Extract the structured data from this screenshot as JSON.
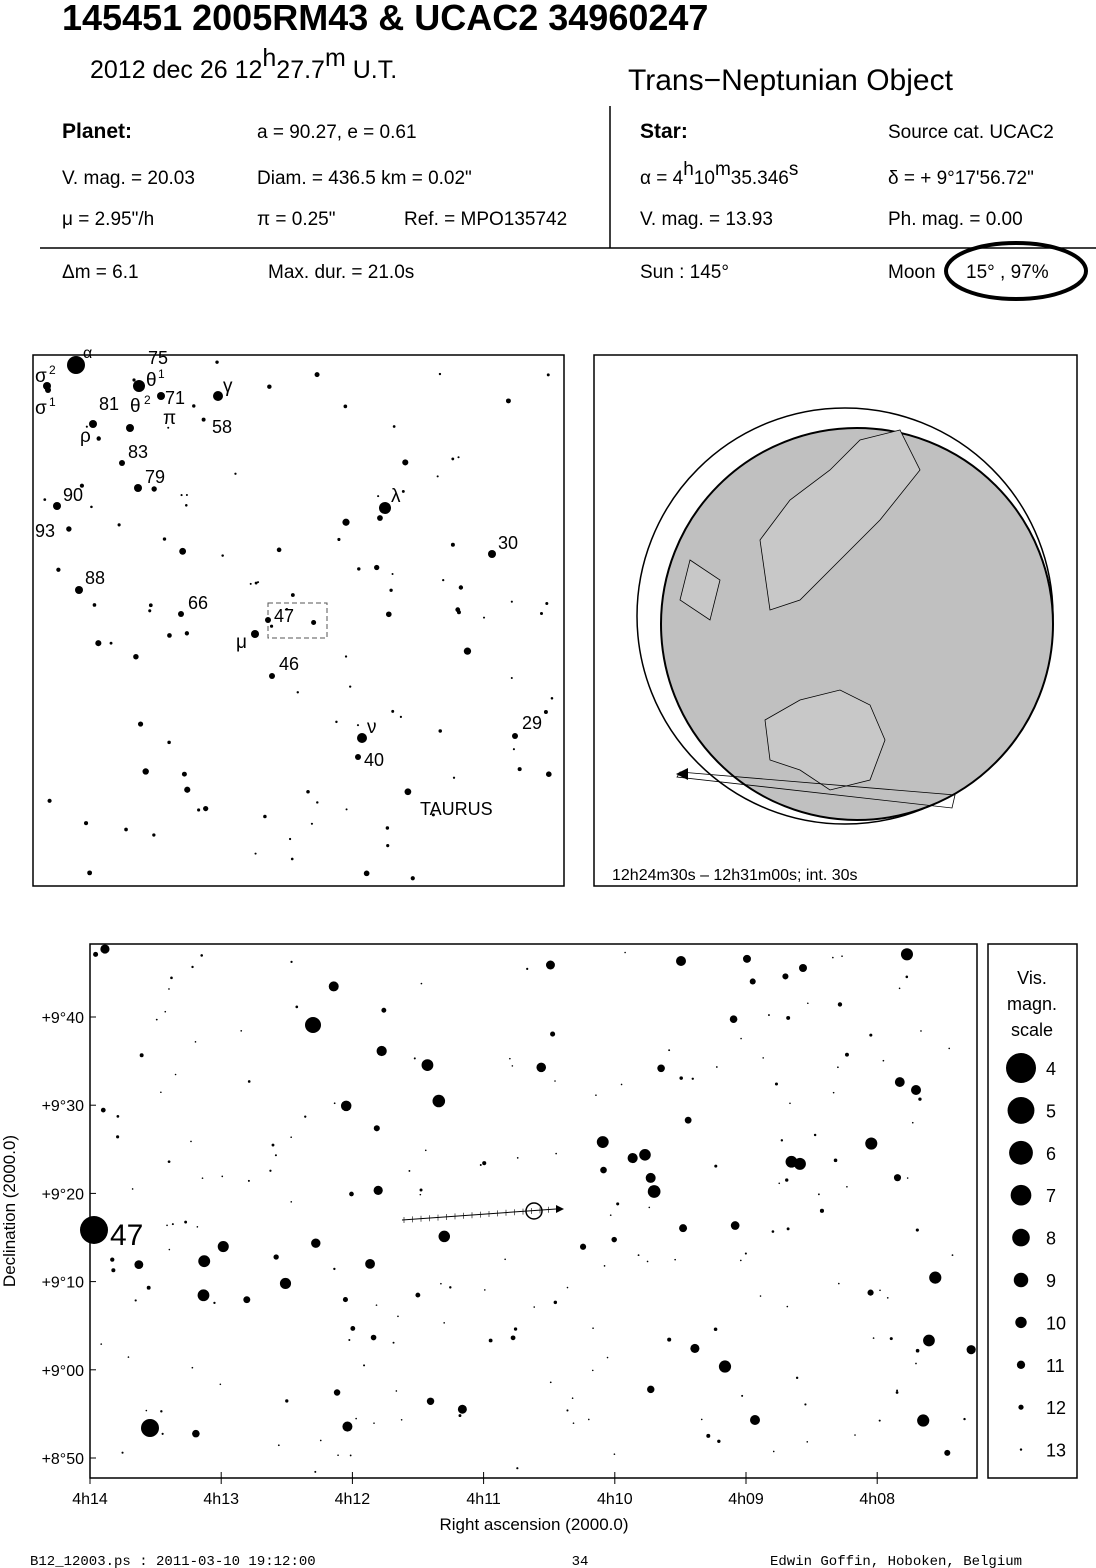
{
  "header": {
    "title": "145451 2005RM43  &  UCAC2 34960247",
    "date": "2012 dec 26  12",
    "date_h": "h",
    "date_min": "27.7",
    "date_m": "m",
    "date_ut": " U.T.",
    "object_type": "Trans−Neptunian Object"
  },
  "planet": {
    "label": "Planet:",
    "orbit": "a = 90.27, e = 0.61",
    "vmag": "V. mag. = 20.03",
    "diam": "Diam. = 436.5 km = 0.02\"",
    "mu": "μ =  2.95\"/h",
    "pi": "π =  0.25\"",
    "ref": "Ref. = MPO135742"
  },
  "star": {
    "label": "Star:",
    "source": "Source cat.  UCAC2",
    "alpha": "α =  4",
    "alpha_h": "h",
    "alpha_min": "10",
    "alpha_m": "m",
    "alpha_sec": "35.346",
    "alpha_s": "s",
    "delta": "δ = + 9°17'56.72\"",
    "vmag": "V. mag. = 13.93",
    "phmag": "Ph. mag. =  0.00"
  },
  "event": {
    "dm": "Δm = 6.1",
    "max_dur": "Max. dur. = 21.0s",
    "sun": "Sun : 145°",
    "moon_label": "Moon",
    "moon": "15° , 97%"
  },
  "finder": {
    "labels": [
      "α",
      "σ",
      "2",
      "75",
      "θ",
      "1",
      "71",
      "γ",
      "σ",
      "1",
      "81",
      "θ",
      "2",
      "π",
      "ρ",
      "58",
      "83",
      "79",
      "90",
      "λ",
      "93",
      "30",
      "88",
      "66",
      "47",
      "μ",
      "46",
      "ν",
      "29",
      "40",
      "TAURUS"
    ]
  },
  "globe": {
    "caption": "12h24m30s – 12h31m00s; int. 30s"
  },
  "detail": {
    "yticks": [
      "+9°40",
      "+9°30",
      "+9°20",
      "+9°10",
      "+9°00",
      "+8°50"
    ],
    "xticks": [
      "4h14",
      "4h13",
      "4h12",
      "4h11",
      "4h10",
      "4h09",
      "4h08"
    ],
    "ylabel": "Declination (2000.0)",
    "xlabel": "Right ascension (2000.0)",
    "star_label": "47",
    "scale_title": [
      "Vis.",
      "magn.",
      "scale"
    ],
    "scale_mags": [
      4,
      5,
      6,
      7,
      8,
      9,
      10,
      11,
      12,
      13
    ]
  },
  "footer": {
    "file": "B12_12003.ps : 2011-03-10 19:12:00",
    "page": "34",
    "author": "Edwin Goffin, Hoboken, Belgium"
  }
}
